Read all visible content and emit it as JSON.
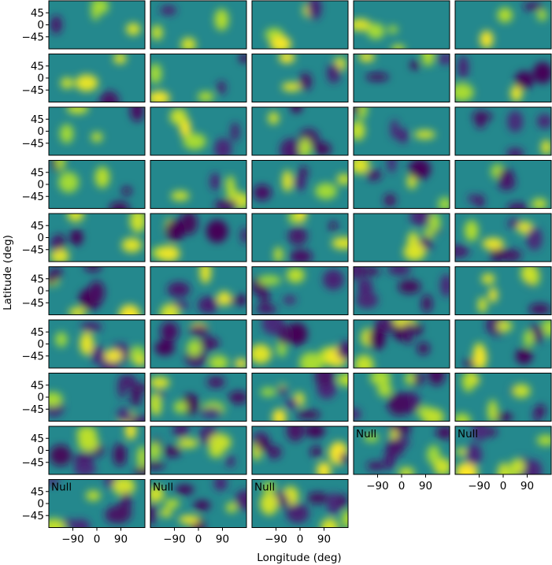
{
  "chart_data": {
    "type": "heatmap",
    "title": "",
    "xlabel": "Longitude (deg)",
    "ylabel": "Latitude (deg)",
    "xlim": [
      -180,
      180
    ],
    "ylim": [
      -90,
      90
    ],
    "x_ticks": [
      -90,
      0,
      90
    ],
    "x_tick_labels": [
      "−90",
      "0",
      "90"
    ],
    "y_ticks": [
      45,
      0,
      -45
    ],
    "y_tick_labels": [
      "45",
      "0",
      "−45"
    ],
    "colormap": "viridis",
    "grid": false,
    "layout_rows": 10,
    "layout_cols": 5,
    "null_label": "Null",
    "null_panels": [
      43,
      44,
      45,
      46,
      47
    ],
    "panel_count": 48,
    "x_ticks_shown_on_panels": [
      43,
      44,
      45,
      46,
      47
    ],
    "y_ticks_shown_on_panels": [
      0,
      5,
      10,
      15,
      20,
      25,
      30,
      35,
      40,
      45
    ]
  }
}
